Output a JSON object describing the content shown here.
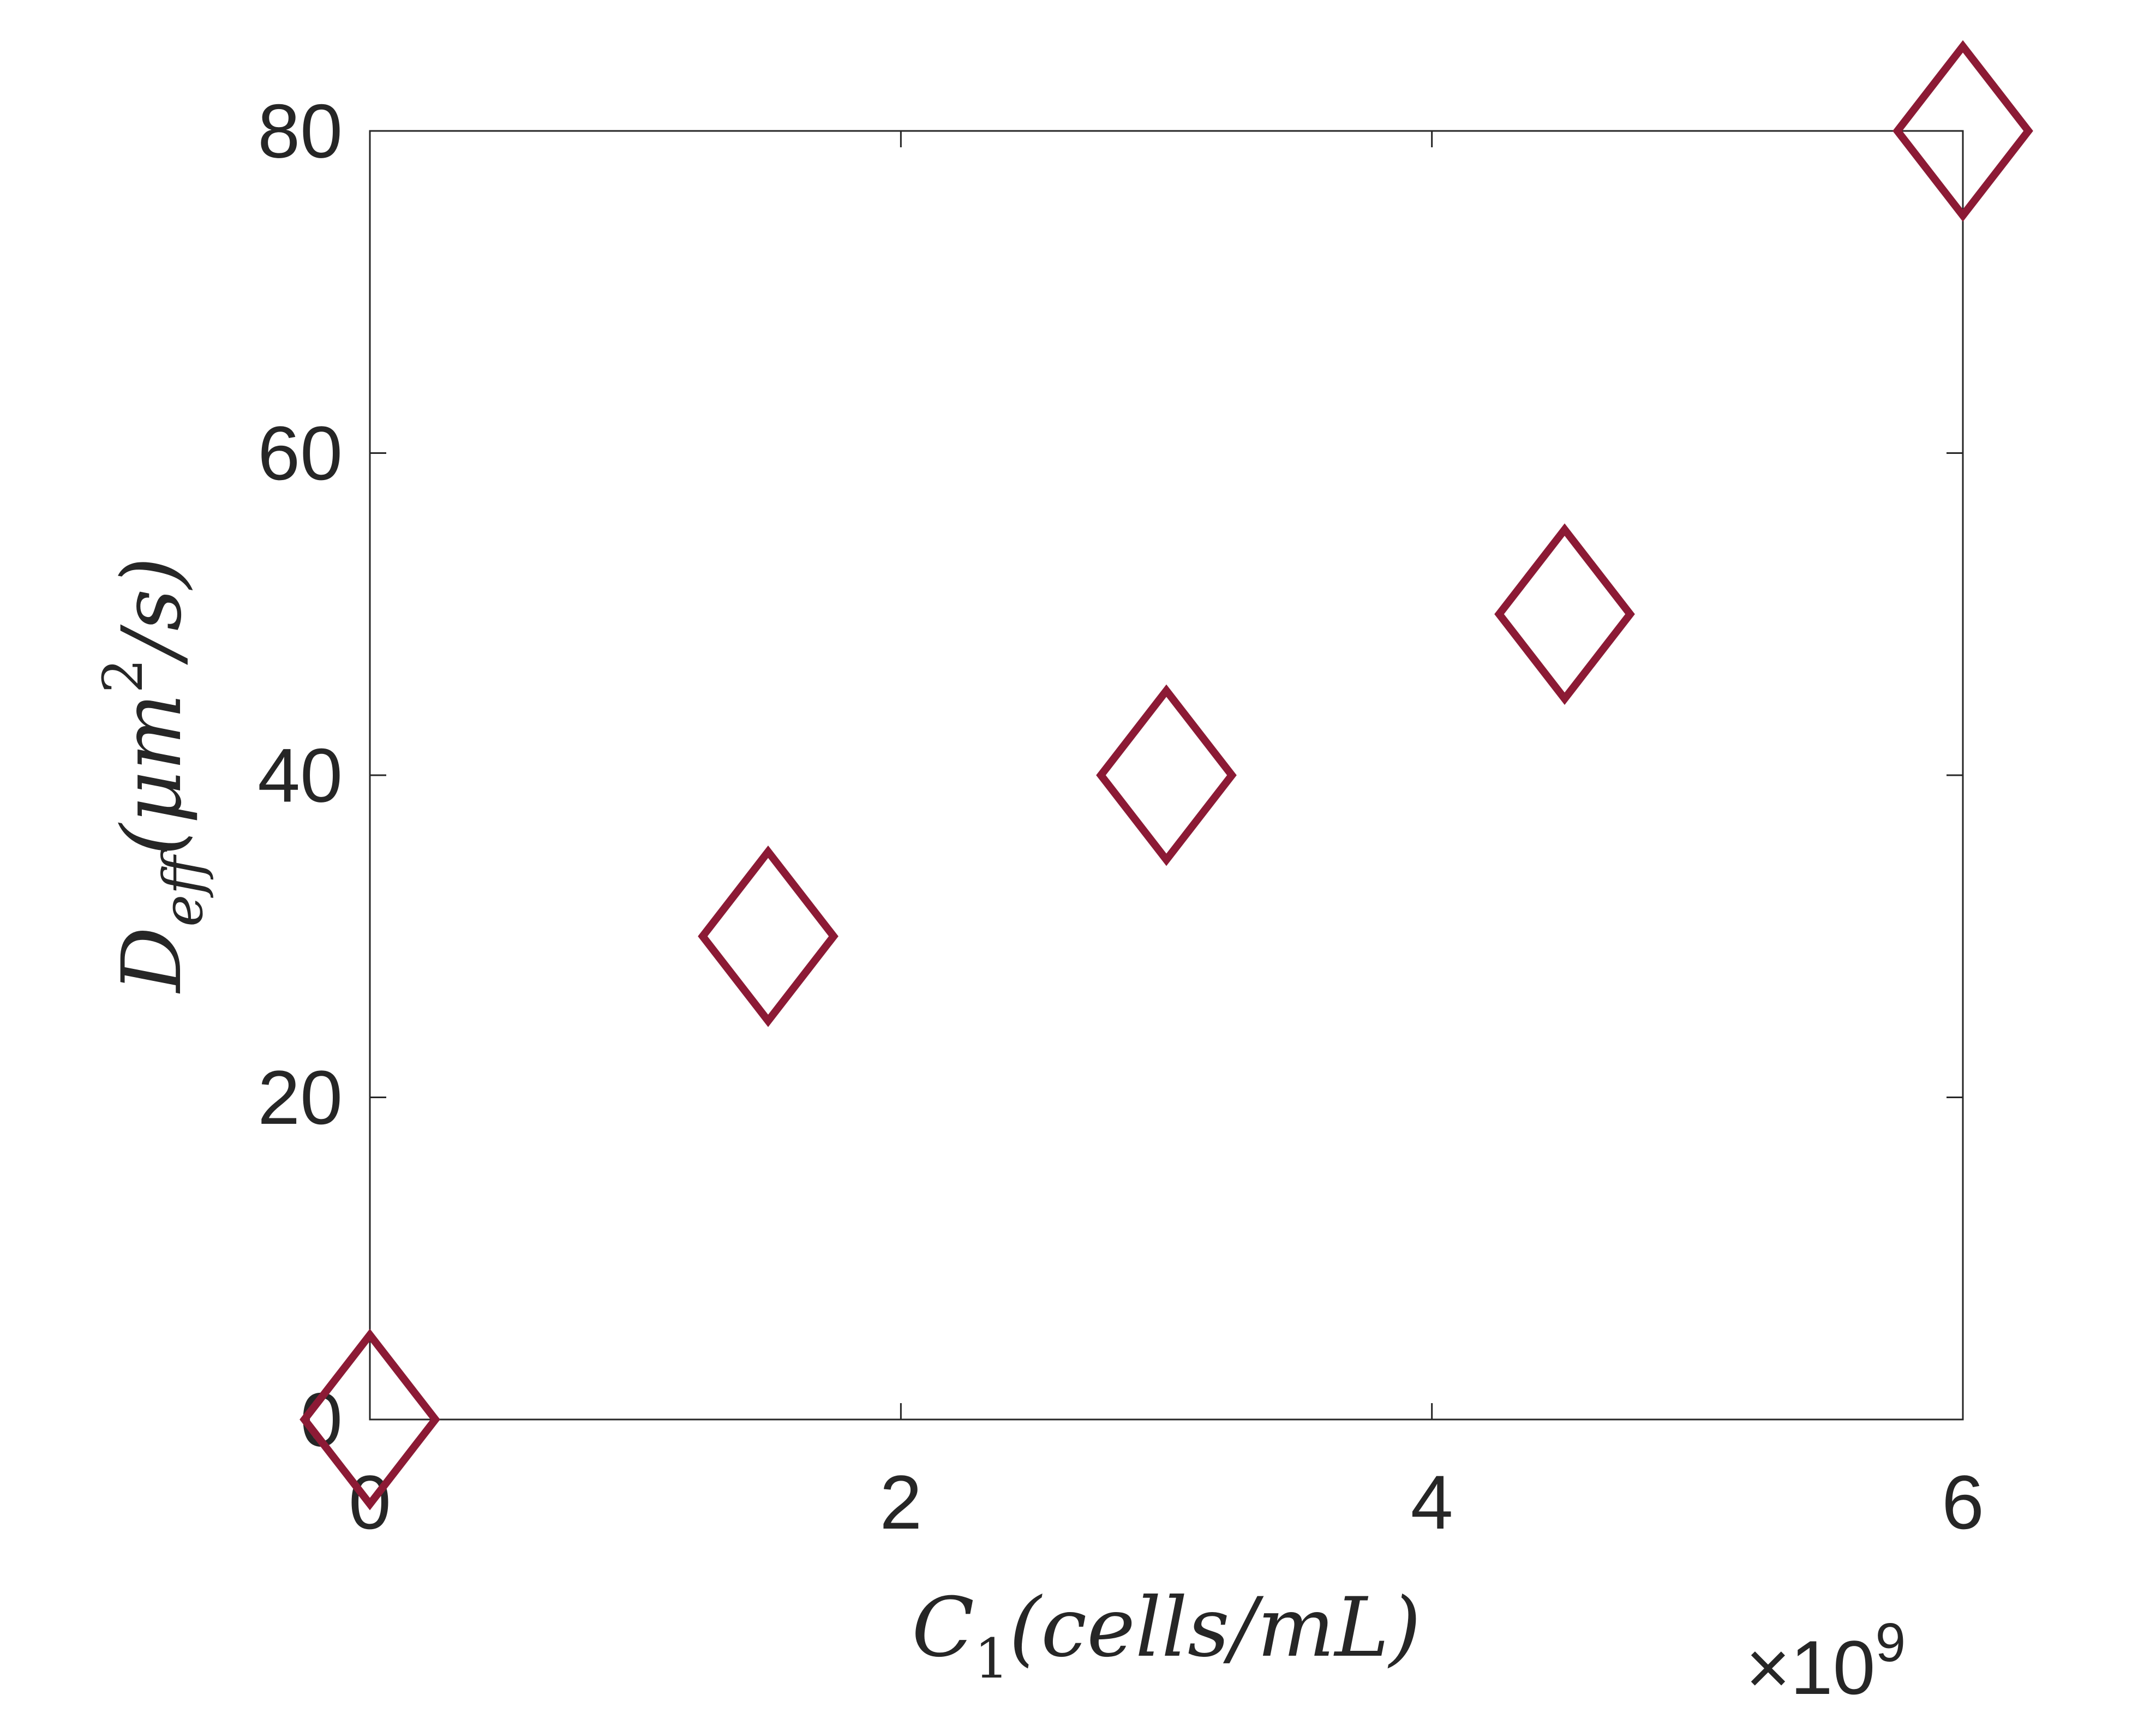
{
  "chart_data": {
    "type": "scatter",
    "title": "",
    "x": [
      0,
      1.5,
      3,
      4.5,
      6
    ],
    "y": [
      0,
      30,
      40,
      50,
      80
    ],
    "xlim": [
      0,
      6
    ],
    "ylim": [
      0,
      80
    ],
    "xticks": [
      "0",
      "2",
      "4",
      "6"
    ],
    "yticks": [
      "0",
      "20",
      "40",
      "60",
      "80"
    ],
    "x_multiplier": "×10",
    "x_multiplier_exp": "9",
    "xlabel_main": "C",
    "xlabel_sub": "1",
    "xlabel_rest": "(cells/mL)",
    "ylabel_main": "D",
    "ylabel_sub": "eff",
    "ylabel_rest_a": "(μm",
    "ylabel_sup": "2",
    "ylabel_rest_b": "/s)",
    "marker": "diamond-open",
    "marker_color": "#8c1a35",
    "grid": false
  }
}
